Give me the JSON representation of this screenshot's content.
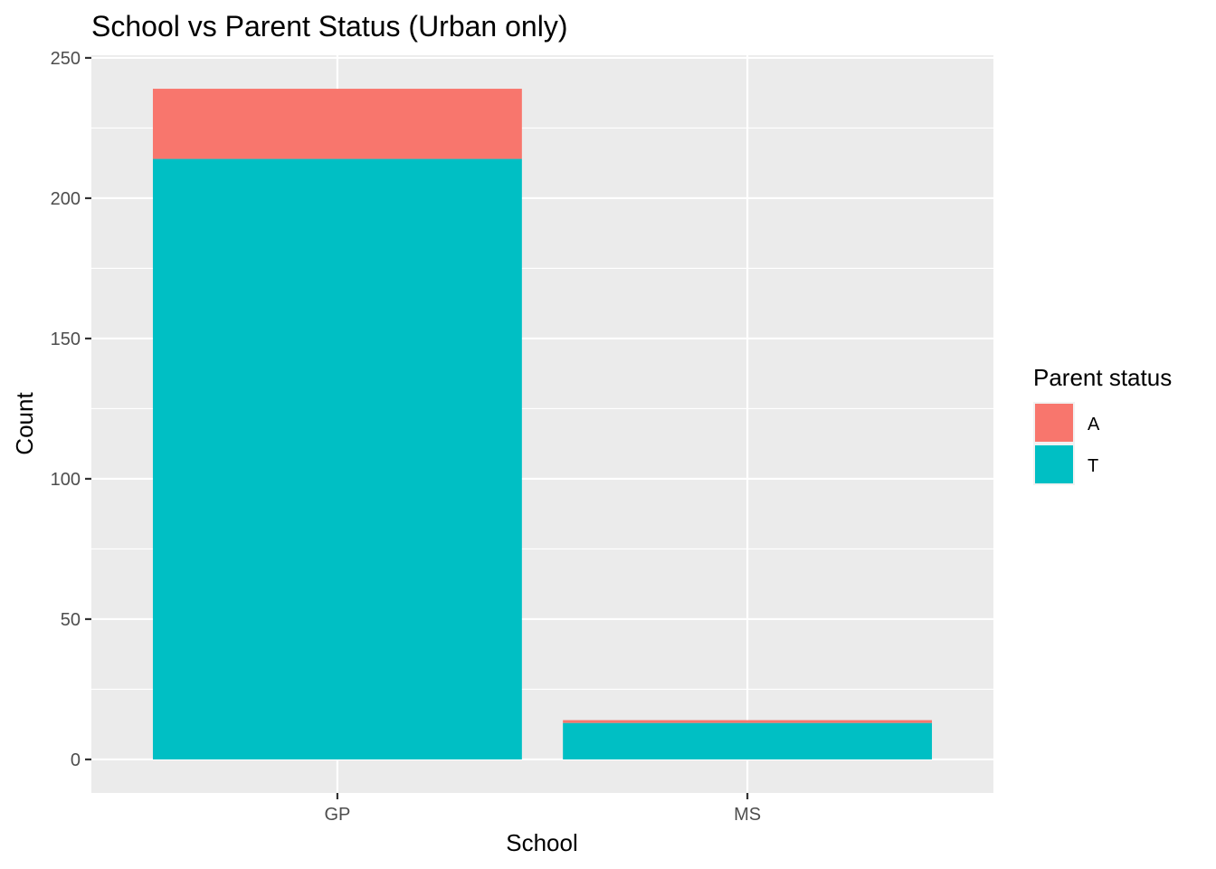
{
  "chart_data": {
    "type": "bar",
    "stacked": true,
    "title": "School vs Parent Status (Urban only)",
    "xlabel": "School",
    "ylabel": "Count",
    "categories": [
      "GP",
      "MS"
    ],
    "series": [
      {
        "name": "A",
        "color": "#F8766D",
        "values": [
          25,
          1
        ]
      },
      {
        "name": "T",
        "color": "#00BFC4",
        "values": [
          214,
          13
        ]
      }
    ],
    "ylim": [
      -11.95,
      250.95
    ],
    "yticks": [
      0,
      50,
      100,
      150,
      200,
      250
    ],
    "grid": true,
    "legend": {
      "title": "Parent status",
      "position": "right",
      "entries": [
        "A",
        "T"
      ]
    }
  }
}
